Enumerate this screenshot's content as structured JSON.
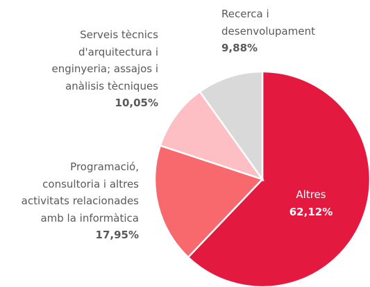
{
  "chart_data": {
    "type": "pie",
    "categories": [
      "Altres",
      "Programació, consultoria i altres activitats relacionades amb la informàtica",
      "Serveis tècnics d'arquitectura i enginyeria; assajos i anàlisis tècniques",
      "Recerca i desenvolupament"
    ],
    "values": [
      62.12,
      17.95,
      10.05,
      9.88
    ],
    "value_labels": [
      "62,12%",
      "17,95%",
      "10,05%",
      "9,88%"
    ],
    "colors": [
      "#e3193f",
      "#f7696c",
      "#fdbfc3",
      "#d9d9d9"
    ]
  }
}
